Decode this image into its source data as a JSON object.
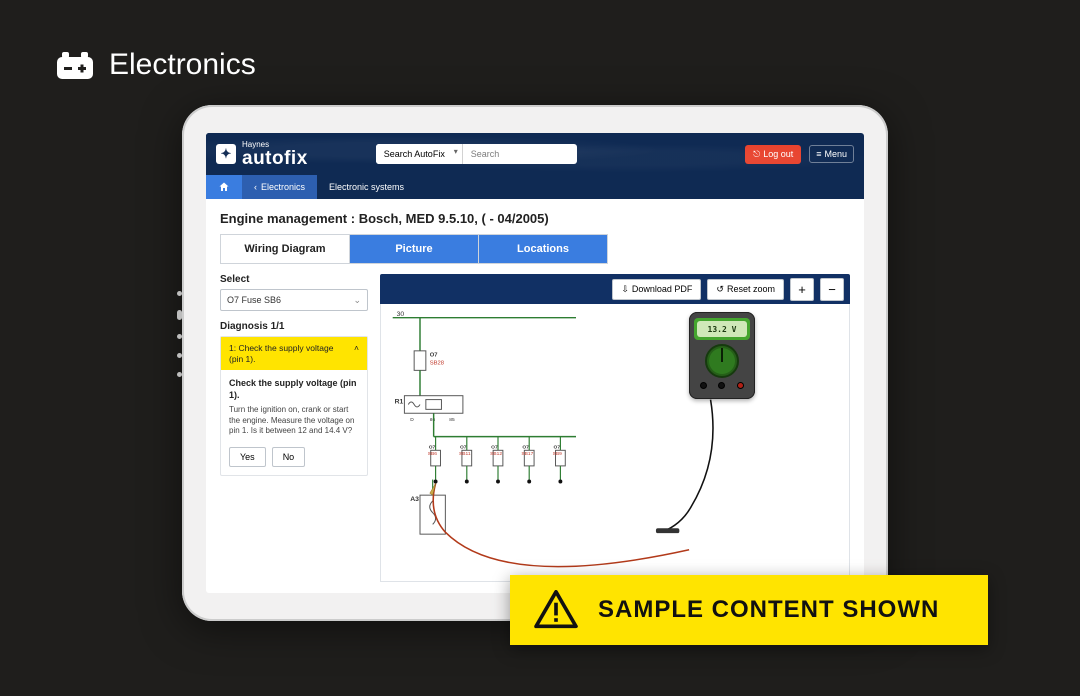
{
  "page": {
    "category_title": "Electronics"
  },
  "topbar": {
    "brand_small": "Haynes",
    "brand_big": "autofix",
    "search_scope": "Search AutoFix",
    "search_placeholder": "Search",
    "logout_label": "Log out",
    "menu_label": "Menu"
  },
  "breadcrumb": {
    "items": [
      {
        "label": "Electronics"
      },
      {
        "label": "Electronic systems"
      }
    ]
  },
  "heading": "Engine management :  Bosch, MED 9.5.10, ( - 04/2005)",
  "tabs": [
    {
      "label": "Wiring Diagram",
      "active": true
    },
    {
      "label": "Picture",
      "active": false
    },
    {
      "label": "Locations",
      "active": false
    }
  ],
  "left": {
    "select_label": "Select",
    "select_value": "O7  Fuse  SB6",
    "diagnosis_label": "Diagnosis 1/1",
    "step_header": "1: Check the supply voltage (pin 1).",
    "step_title": "Check the supply voltage (pin 1).",
    "step_text": "Turn the ignition on, crank or start the engine. Measure the voltage on pin 1. Is it between 12 and 14.4 V?",
    "yes_label": "Yes",
    "no_label": "No"
  },
  "toolbar": {
    "download_label": "Download PDF",
    "reset_label": "Reset zoom",
    "zoom_in": "+",
    "zoom_out": "−"
  },
  "meter": {
    "reading": "13.2 V"
  },
  "diagram": {
    "colors": {
      "wire_green": "#2e7d32",
      "wire_black": "#111111",
      "label_red": "#c0392b",
      "probe_wire": "#b23a1a",
      "box_stroke": "#555555"
    },
    "top_label": "30",
    "relay_label": "R1",
    "relay_pins": [
      "D",
      "86",
      "85"
    ],
    "main_fuse": {
      "code": "O7",
      "name": "SB28"
    },
    "fuse_row": [
      {
        "code": "O7",
        "name": "SB6"
      },
      {
        "code": "O7",
        "name": "SB11"
      },
      {
        "code": "O7",
        "name": "SB12"
      },
      {
        "code": "O7",
        "name": "SB17"
      },
      {
        "code": "O7",
        "name": "SB9"
      }
    ],
    "bottom_block": "A3"
  },
  "banner": {
    "text": "SAMPLE CONTENT SHOWN"
  }
}
